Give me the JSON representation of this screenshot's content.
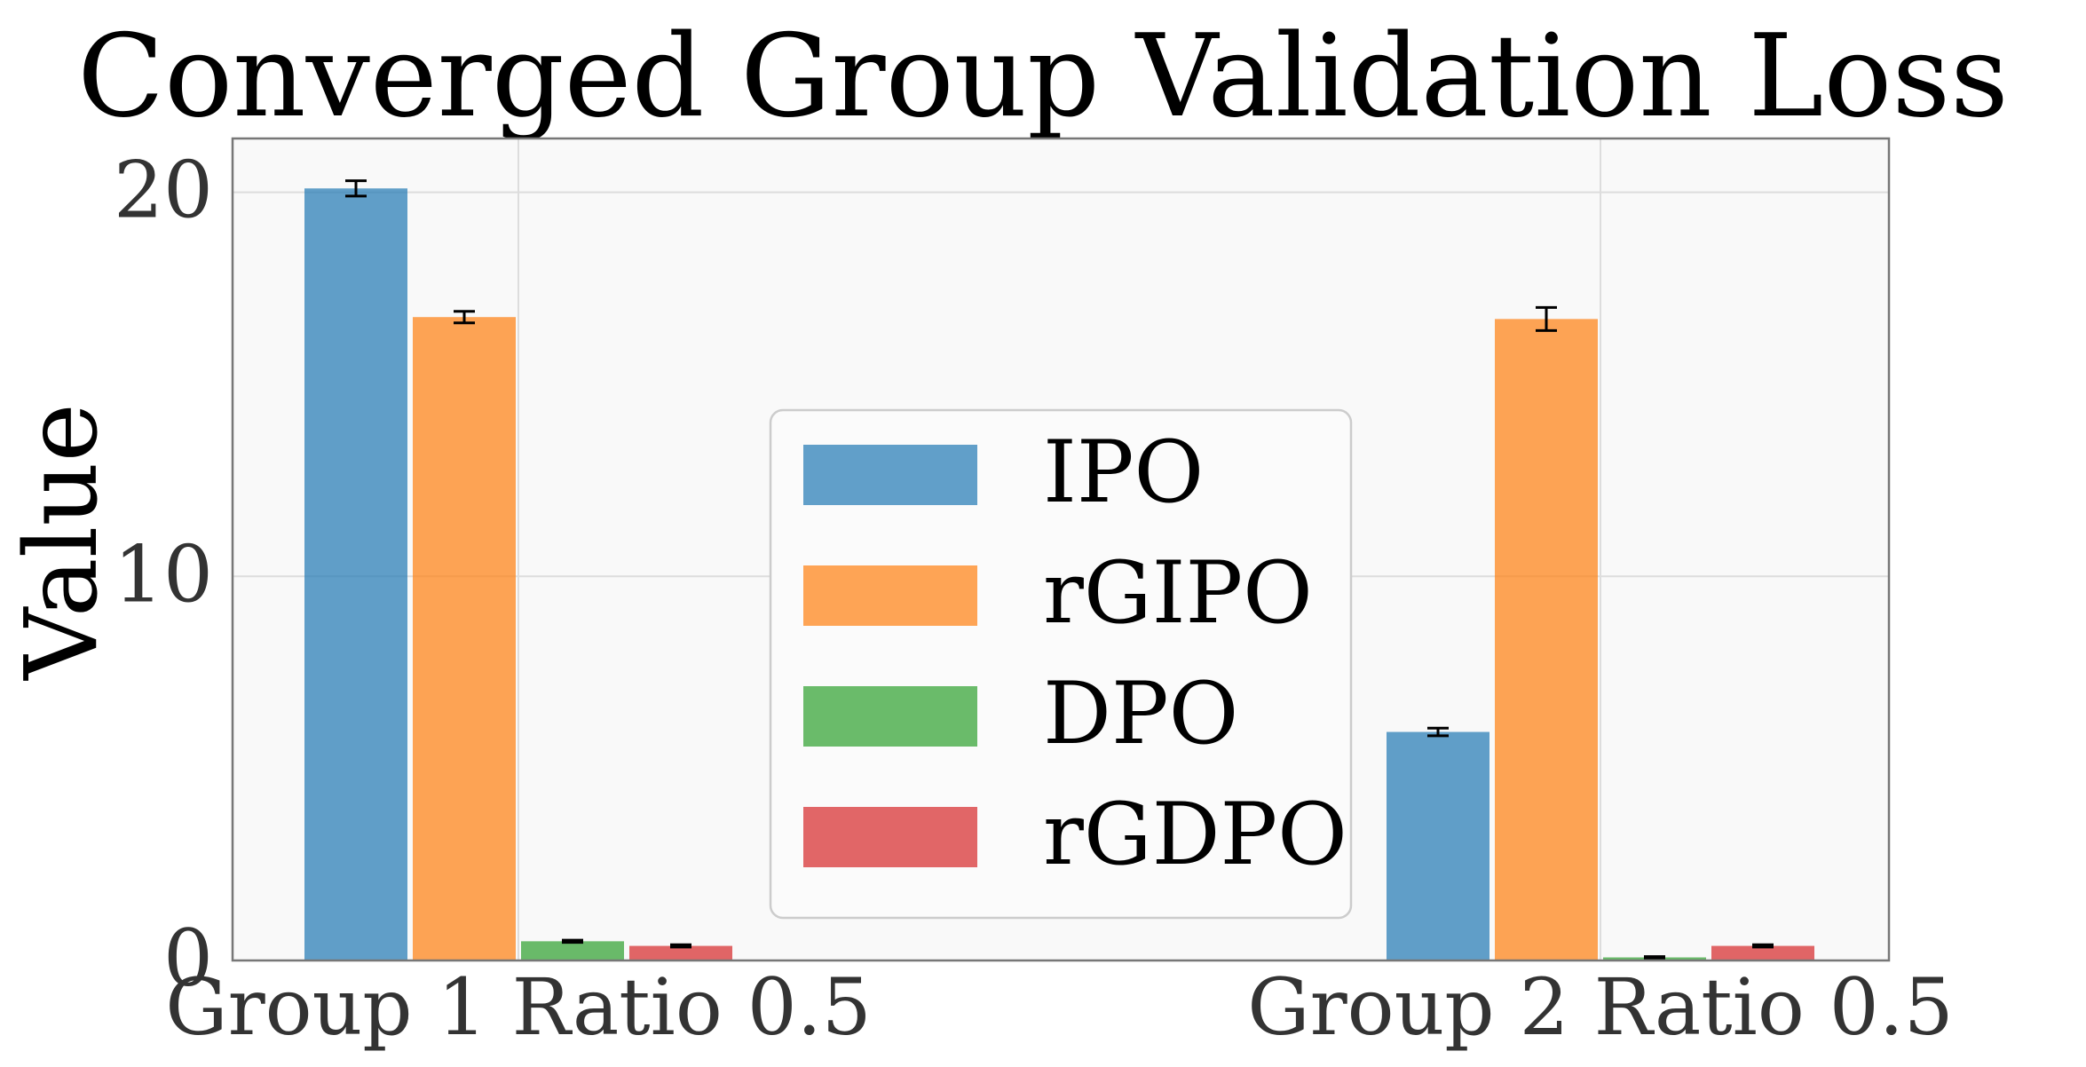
{
  "chart_data": {
    "type": "bar",
    "title": "Converged Group Validation Loss",
    "ylabel": "Value",
    "xlabel": "",
    "categories": [
      "Group 1 Ratio 0.5",
      "Group 2 Ratio 0.5"
    ],
    "series": [
      {
        "name": "IPO",
        "values": [
          20.1,
          5.95
        ],
        "errors": [
          0.2,
          0.1
        ],
        "color": "#1f77b4"
      },
      {
        "name": "rGIPO",
        "values": [
          16.75,
          16.7
        ],
        "errors": [
          0.15,
          0.3
        ],
        "color": "#ff7f0e"
      },
      {
        "name": "DPO",
        "values": [
          0.5,
          0.08
        ],
        "errors": [
          0.03,
          0.02
        ],
        "color": "#2ca02c"
      },
      {
        "name": "rGDPO",
        "values": [
          0.38,
          0.38
        ],
        "errors": [
          0.03,
          0.03
        ],
        "color": "#d62728"
      }
    ],
    "ylim": [
      0,
      21.4
    ],
    "yticks": [
      "0",
      "10",
      "20"
    ],
    "ytick_values": [
      0,
      10,
      20
    ],
    "grid": true,
    "legend_position": "center",
    "background": "#f9f9f9"
  }
}
